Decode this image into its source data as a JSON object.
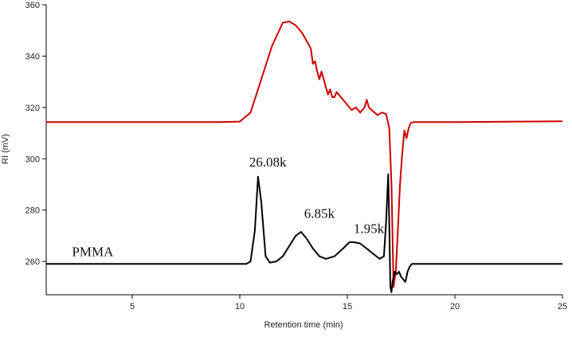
{
  "chart_data": {
    "type": "line",
    "xlabel": "Retention time (min)",
    "ylabel": "RI (mV)",
    "xlim": [
      1,
      25
    ],
    "ylim": [
      247,
      360
    ],
    "x_ticks": [
      5,
      10,
      15,
      20,
      25
    ],
    "y_ticks": [
      260,
      280,
      300,
      320,
      340,
      360
    ],
    "grid": false,
    "annotations": [
      {
        "text": "26.08k",
        "x": 11.3,
        "y": 297
      },
      {
        "text": "6.85k",
        "x": 13.7,
        "y": 277
      },
      {
        "text": "1.95k",
        "x": 16.0,
        "y": 271
      },
      {
        "text": "PMMA",
        "x": 2.2,
        "y": 262
      }
    ],
    "series": [
      {
        "color": "#cc0000",
        "x": [
          1,
          9,
          10,
          10.5,
          11.0,
          11.5,
          12.0,
          12.3,
          12.6,
          12.9,
          13.1,
          13.3,
          13.4,
          13.5,
          13.6,
          13.7,
          13.8,
          13.9,
          14.0,
          14.1,
          14.2,
          14.3,
          14.4,
          14.5,
          14.6,
          14.8,
          15.0,
          15.2,
          15.4,
          15.6,
          15.8,
          15.9,
          16.0,
          16.2,
          16.4,
          16.6,
          16.8,
          16.95,
          17.05,
          17.15,
          17.25,
          17.35,
          17.45,
          17.55,
          17.65,
          17.75,
          17.85,
          17.95,
          18.1,
          20,
          25
        ],
        "y": [
          314.3,
          314.3,
          314.5,
          318,
          331,
          344,
          353,
          353.5,
          352,
          349,
          346,
          343,
          337,
          338,
          334,
          331,
          334,
          331,
          328,
          325,
          327,
          324,
          324,
          326,
          325,
          323,
          321,
          319,
          320,
          318,
          320,
          323,
          320,
          318.5,
          317,
          318,
          317.5,
          312,
          290,
          250,
          256,
          272,
          290,
          302,
          311,
          308,
          312,
          314,
          314.3,
          314.3,
          314.6
        ]
      },
      {
        "color": "#000000",
        "x": [
          1,
          10,
          10.3,
          10.5,
          10.7,
          10.85,
          11.0,
          11.2,
          11.4,
          11.7,
          12.0,
          12.3,
          12.6,
          12.85,
          13.1,
          13.4,
          13.7,
          14.0,
          14.4,
          14.8,
          15.1,
          15.3,
          15.6,
          15.9,
          16.2,
          16.5,
          16.7,
          16.8,
          16.9,
          16.95,
          17.0,
          17.05,
          17.1,
          17.2,
          17.3,
          17.4,
          17.5,
          17.6,
          17.7,
          17.8,
          17.9,
          18.0,
          20,
          25
        ],
        "y": [
          259,
          259,
          259,
          260,
          272,
          293,
          283,
          262,
          259.5,
          260,
          262,
          266,
          270,
          271.5,
          269,
          265,
          262,
          261,
          262,
          265,
          267.5,
          267.5,
          267,
          265,
          263,
          261,
          262,
          275,
          294,
          275,
          250,
          248,
          252,
          256,
          255,
          256,
          254,
          253,
          252,
          256,
          258,
          259,
          259,
          259
        ]
      }
    ]
  }
}
